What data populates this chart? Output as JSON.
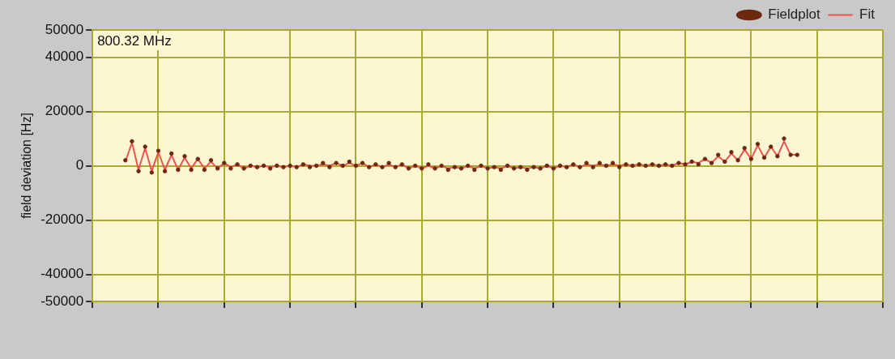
{
  "chart_data": {
    "type": "line",
    "ylabel": "field deviation [Hz]",
    "annotations": [
      "800.32 MHz"
    ],
    "categories": [
      null,
      null,
      null,
      null,
      null,
      null,
      null,
      null,
      null,
      null,
      null,
      null,
      null,
      null,
      null,
      null,
      null,
      null,
      null,
      null,
      null,
      null,
      null,
      null,
      null,
      null,
      null,
      null,
      null,
      null,
      null,
      null,
      null,
      null,
      null,
      null,
      null,
      null,
      null,
      null,
      null,
      null,
      null,
      null,
      null,
      null,
      null,
      null,
      null,
      null,
      null,
      null,
      null,
      null,
      null,
      null,
      null,
      null,
      null,
      null,
      null,
      null,
      null,
      null,
      null,
      null,
      null,
      null,
      null,
      null,
      null,
      null,
      null,
      null,
      null,
      null,
      null,
      null,
      null,
      null,
      null,
      null,
      null,
      null,
      null,
      null,
      null,
      null,
      null,
      null,
      null,
      null,
      null,
      null,
      null,
      null,
      null,
      null,
      null,
      null,
      null,
      null,
      null,
      null,
      null,
      null,
      null,
      null,
      null,
      null,
      null,
      null,
      null,
      null,
      null,
      null,
      null,
      null,
      null,
      null,
      null
    ],
    "series": [
      {
        "name": "Fieldplot",
        "type": "scatter",
        "marker": "circle",
        "color": "#6b2a10",
        "values": [
          null,
          null,
          null,
          null,
          null,
          2000,
          9000,
          -2000,
          7000,
          -2500,
          5500,
          -2000,
          4500,
          -1500,
          3500,
          -1500,
          2500,
          -1500,
          2000,
          -1000,
          1000,
          -1000,
          500,
          -1000,
          0,
          -500,
          0,
          -1000,
          0,
          -500,
          0,
          -500,
          500,
          -500,
          0,
          1000,
          -500,
          1000,
          0,
          1500,
          0,
          1000,
          -500,
          500,
          -500,
          1000,
          -500,
          500,
          -1000,
          0,
          -1000,
          500,
          -1000,
          0,
          -1500,
          -500,
          -1000,
          0,
          -1500,
          0,
          -1000,
          -500,
          -1500,
          0,
          -1000,
          -500,
          -1500,
          -500,
          -1000,
          0,
          -1000,
          0,
          -500,
          500,
          -500,
          1000,
          -500,
          1000,
          0,
          1000,
          -500,
          500,
          0,
          500,
          0,
          500,
          0,
          500,
          0,
          1000,
          500,
          1500,
          500,
          2500,
          1000,
          4000,
          1500,
          5000,
          2000,
          6500,
          2500,
          8000,
          3000,
          7000,
          3500,
          10000,
          4000,
          4000,
          null,
          null,
          null,
          null,
          null,
          null,
          null,
          null,
          null,
          null,
          null,
          null,
          null
        ]
      },
      {
        "name": "Fit",
        "type": "line",
        "color": "#f05050",
        "values": [
          null,
          null,
          null,
          null,
          null,
          1500,
          8500,
          -1500,
          6500,
          -2000,
          5000,
          -1500,
          4000,
          -1500,
          3000,
          -1000,
          2500,
          -1000,
          1500,
          -1000,
          1000,
          -500,
          500,
          -1000,
          0,
          -500,
          0,
          -500,
          0,
          -500,
          0,
          -500,
          500,
          0,
          0,
          500,
          0,
          1000,
          0,
          1000,
          0,
          1000,
          -500,
          500,
          -500,
          500,
          -500,
          500,
          -1000,
          0,
          -1000,
          0,
          -1000,
          0,
          -1000,
          -500,
          -1000,
          0,
          -1000,
          0,
          -1000,
          -500,
          -1000,
          0,
          -1000,
          -500,
          -1000,
          -500,
          -1000,
          0,
          -1000,
          0,
          -500,
          500,
          -500,
          500,
          0,
          500,
          0,
          500,
          0,
          500,
          0,
          500,
          0,
          500,
          0,
          500,
          0,
          1000,
          500,
          1500,
          1000,
          2500,
          1000,
          3500,
          1500,
          4500,
          2000,
          6000,
          2500,
          7500,
          3000,
          7000,
          3500,
          9000,
          4000,
          4000,
          null,
          null,
          null,
          null,
          null,
          null,
          null,
          null,
          null,
          null,
          null,
          null,
          null
        ]
      }
    ],
    "ylim": [
      -50000,
      50000
    ],
    "yticks": [
      -50000,
      -40000,
      -20000,
      0,
      20000,
      40000,
      50000
    ],
    "grid": true,
    "legend": "top right",
    "tick_labels": "y"
  }
}
